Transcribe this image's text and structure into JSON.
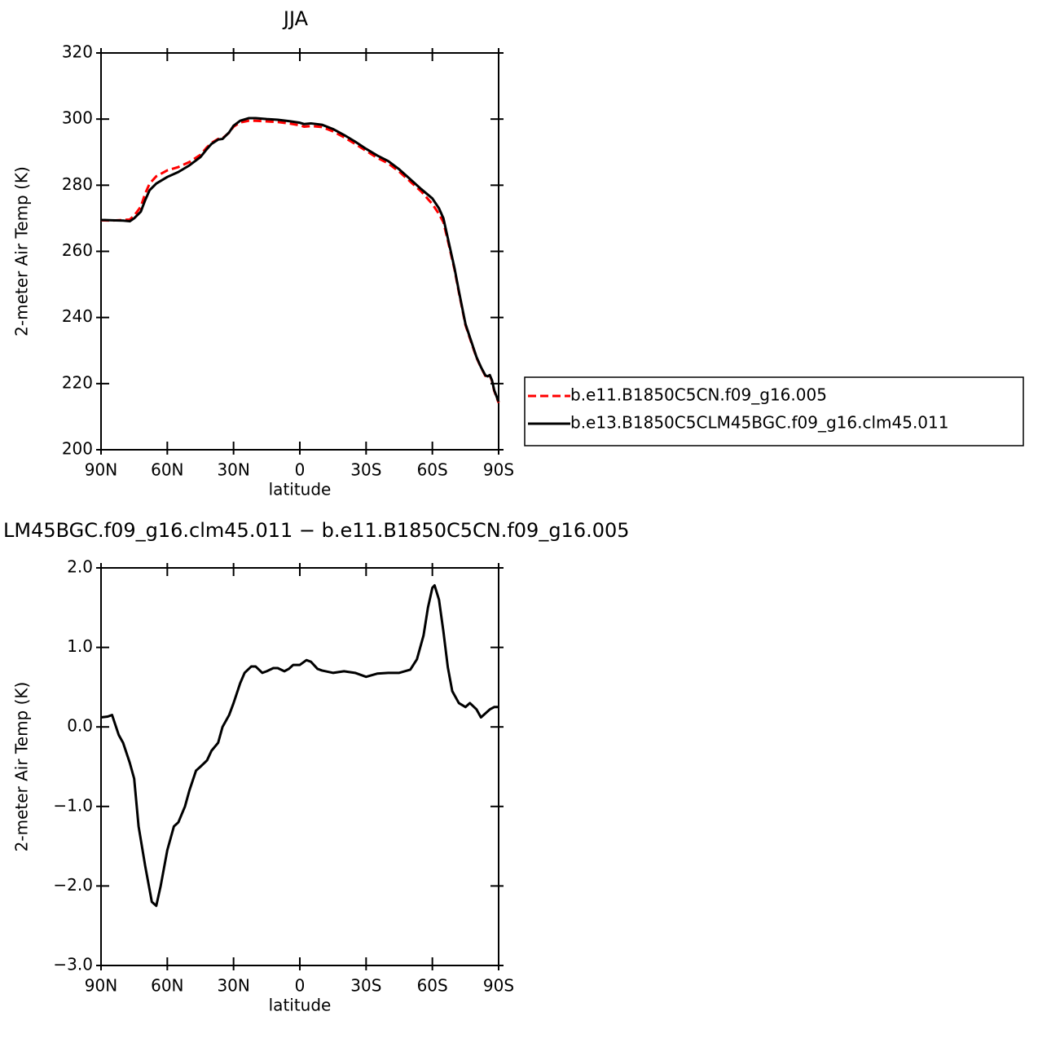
{
  "chart_data": [
    {
      "type": "line",
      "title": "JJA",
      "xlabel": "latitude",
      "ylabel": "2-meter Air Temp (K)",
      "xlim": [
        90,
        -90
      ],
      "xticks": [
        {
          "value": 90,
          "label": "90N"
        },
        {
          "value": 60,
          "label": "60N"
        },
        {
          "value": 30,
          "label": "30N"
        },
        0,
        {
          "value": -30,
          "label": "30S"
        },
        {
          "value": -60,
          "label": "60S"
        },
        {
          "value": -90,
          "label": "90S"
        }
      ],
      "ylim": [
        200,
        320
      ],
      "yticks": [
        200,
        220,
        240,
        260,
        280,
        300,
        320
      ],
      "legend": "right",
      "x": [
        90,
        85,
        80,
        77,
        75,
        72,
        70,
        68,
        65,
        60,
        55,
        50,
        45,
        42,
        40,
        37,
        35,
        32,
        30,
        27,
        23,
        20,
        15,
        10,
        5,
        0,
        -2,
        -5,
        -10,
        -15,
        -20,
        -25,
        -30,
        -35,
        -40,
        -45,
        -50,
        -55,
        -60,
        -63,
        -65,
        -67,
        -70,
        -72,
        -75,
        -78,
        -80,
        -82,
        -84,
        -85,
        -86,
        -87,
        -88,
        -90
      ],
      "series": [
        {
          "name": "b.e11.B1850C5CN.f09_g16.005",
          "color": "#ff0000",
          "dash": true,
          "values": [
            269.4,
            269.3,
            269.5,
            269.6,
            270.8,
            273.5,
            277.5,
            280.5,
            282.7,
            284.5,
            285.5,
            287,
            289.2,
            291.5,
            292.8,
            294,
            294.2,
            295.9,
            297.7,
            299,
            299.5,
            299.5,
            299.3,
            299.1,
            298.7,
            298.1,
            297.7,
            297.9,
            297.6,
            296.3,
            294.5,
            292.5,
            290.4,
            288.3,
            286.6,
            284.1,
            281.1,
            278.1,
            274.3,
            271.3,
            268.8,
            263.3,
            254.6,
            247.6,
            237.7,
            231.7,
            227.8,
            224.9,
            222.3,
            222,
            222.4,
            220.8,
            217.8,
            214.2
          ]
        },
        {
          "name": "b.e13.B1850C5CLM45BGC.f09_g16.clm45.011",
          "color": "#000000",
          "dash": false,
          "values": [
            269.5,
            269.4,
            269.3,
            269.1,
            270,
            272,
            275.5,
            278.5,
            280.5,
            282.5,
            284,
            286,
            288.5,
            291,
            292.5,
            293.8,
            294,
            296,
            298,
            299.5,
            300.3,
            300.3,
            300,
            299.8,
            299.4,
            298.9,
            298.5,
            298.7,
            298.3,
            297,
            295.2,
            293.2,
            291,
            289,
            287.3,
            284.8,
            281.8,
            278.8,
            276,
            273,
            270,
            264,
            255,
            248,
            238,
            232,
            228,
            225,
            222.5,
            222.2,
            222.6,
            221,
            218,
            214.5
          ]
        }
      ]
    },
    {
      "type": "line",
      "title": "LM45BGC.f09_g16.clm45.011 − b.e11.B1850C5CN.f09_g16.005",
      "xlabel": "latitude",
      "ylabel": "2-meter Air Temp (K)",
      "xlim": [
        90,
        -90
      ],
      "xticks": [
        {
          "value": 90,
          "label": "90N"
        },
        {
          "value": 60,
          "label": "60N"
        },
        {
          "value": 30,
          "label": "30N"
        },
        0,
        {
          "value": -30,
          "label": "30S"
        },
        {
          "value": -60,
          "label": "60S"
        },
        {
          "value": -90,
          "label": "90S"
        }
      ],
      "ylim": [
        -3,
        2
      ],
      "yticks": [
        {
          "value": -3,
          "label": "−3.0"
        },
        {
          "value": -2,
          "label": "−2.0"
        },
        {
          "value": -1,
          "label": "−1.0"
        },
        {
          "value": 0,
          "label": "0.0"
        },
        {
          "value": 1,
          "label": "1.0"
        },
        {
          "value": 2,
          "label": "2.0"
        }
      ],
      "x": [
        90,
        87,
        85,
        82,
        80,
        77,
        75,
        73,
        70,
        68,
        67,
        65,
        63,
        60,
        57,
        55,
        52,
        50,
        47,
        45,
        42,
        40,
        37,
        35,
        32,
        30,
        27,
        25,
        22,
        20,
        17,
        15,
        12,
        10,
        7,
        5,
        3,
        0,
        -3,
        -5,
        -8,
        -10,
        -15,
        -20,
        -25,
        -30,
        -35,
        -40,
        -45,
        -50,
        -53,
        -56,
        -58,
        -60,
        -61,
        -63,
        -65,
        -67,
        -69,
        -72,
        -75,
        -77,
        -80,
        -82,
        -84,
        -86,
        -88,
        -90
      ],
      "series": [
        {
          "color": "#000000",
          "dash": false,
          "values": [
            0.12,
            0.13,
            0.15,
            -0.1,
            -0.2,
            -0.45,
            -0.65,
            -1.25,
            -1.75,
            -2.05,
            -2.2,
            -2.25,
            -2.0,
            -1.55,
            -1.25,
            -1.2,
            -1.0,
            -0.8,
            -0.55,
            -0.5,
            -0.42,
            -0.3,
            -0.2,
            0.0,
            0.15,
            0.3,
            0.55,
            0.68,
            0.76,
            0.76,
            0.68,
            0.7,
            0.74,
            0.74,
            0.7,
            0.73,
            0.78,
            0.78,
            0.84,
            0.82,
            0.73,
            0.71,
            0.68,
            0.7,
            0.68,
            0.63,
            0.67,
            0.68,
            0.68,
            0.72,
            0.85,
            1.15,
            1.5,
            1.75,
            1.78,
            1.6,
            1.2,
            0.75,
            0.45,
            0.3,
            0.25,
            0.3,
            0.22,
            0.12,
            0.17,
            0.22,
            0.25,
            0.25
          ]
        }
      ]
    }
  ]
}
